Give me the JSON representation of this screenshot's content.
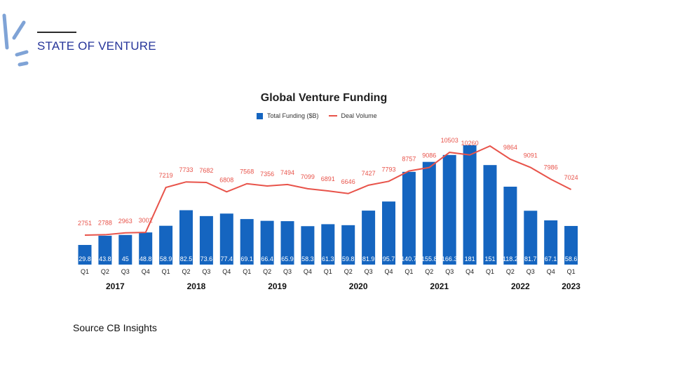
{
  "header": {
    "title": "STATE OF VENTURE"
  },
  "source": "Source CB Insights",
  "colors": {
    "bars": "#1565c0",
    "line": "#e8534a",
    "header": "#26359a",
    "logo": "#7fa3d6"
  },
  "chart_data": {
    "type": "bar",
    "title": "Global Venture Funding",
    "xlabel": "",
    "ylabel": "",
    "legend": "top-center",
    "grid": false,
    "categories": [
      "Q1",
      "Q2",
      "Q3",
      "Q4",
      "Q1",
      "Q2",
      "Q3",
      "Q4",
      "Q1",
      "Q2",
      "Q3",
      "Q4",
      "Q1",
      "Q2",
      "Q3",
      "Q4",
      "Q1",
      "Q2",
      "Q3",
      "Q4",
      "Q1",
      "Q2",
      "Q3",
      "Q4",
      "Q1"
    ],
    "years": [
      {
        "label": "2017",
        "start": 0,
        "end": 3
      },
      {
        "label": "2018",
        "start": 4,
        "end": 7
      },
      {
        "label": "2019",
        "start": 8,
        "end": 11
      },
      {
        "label": "2020",
        "start": 12,
        "end": 15
      },
      {
        "label": "2021",
        "start": 16,
        "end": 19
      },
      {
        "label": "2022",
        "start": 20,
        "end": 23
      },
      {
        "label": "2023",
        "start": 24,
        "end": 24
      }
    ],
    "series": [
      {
        "name": "Total Funding ($B)",
        "type": "bar",
        "values": [
          29.8,
          43.8,
          45,
          48.8,
          58.9,
          82.5,
          73.6,
          77.4,
          69.1,
          66.4,
          65.9,
          58.3,
          61.3,
          59.8,
          81.9,
          95.7,
          140.7,
          155.8,
          166.3,
          181,
          151,
          118.2,
          81.7,
          67.1,
          58.6
        ],
        "labels": [
          "29.8",
          "43.8",
          "45",
          "48.8",
          "58.9",
          "82.5",
          "73.6",
          "77.4",
          "69.1",
          "66.4",
          "65.9",
          "58.3",
          "61.3",
          "59.8",
          "81.9",
          "95.7",
          "140.7",
          "155.8",
          "166.3",
          "181",
          "151",
          "118.2",
          "81.7",
          "67.1",
          "58.6"
        ]
      },
      {
        "name": "Deal Volume",
        "type": "line",
        "values": [
          2751,
          2788,
          2963,
          3002,
          7219,
          7733,
          7682,
          6808,
          7568,
          7356,
          7494,
          7099,
          6891,
          6646,
          7427,
          7793,
          8757,
          9086,
          10503,
          10260,
          11100,
          9864,
          9091,
          7986,
          7024
        ],
        "labels": [
          "2751",
          "2788",
          "2963",
          "3002",
          "7219",
          "7733",
          "7682",
          "6808",
          "7568",
          "7356",
          "7494",
          "7099",
          "6891",
          "6646",
          "7427",
          "7793",
          "8757",
          "9086",
          "10503",
          "10260",
          "",
          "9864",
          "9091",
          "7986",
          "7024"
        ]
      }
    ]
  }
}
